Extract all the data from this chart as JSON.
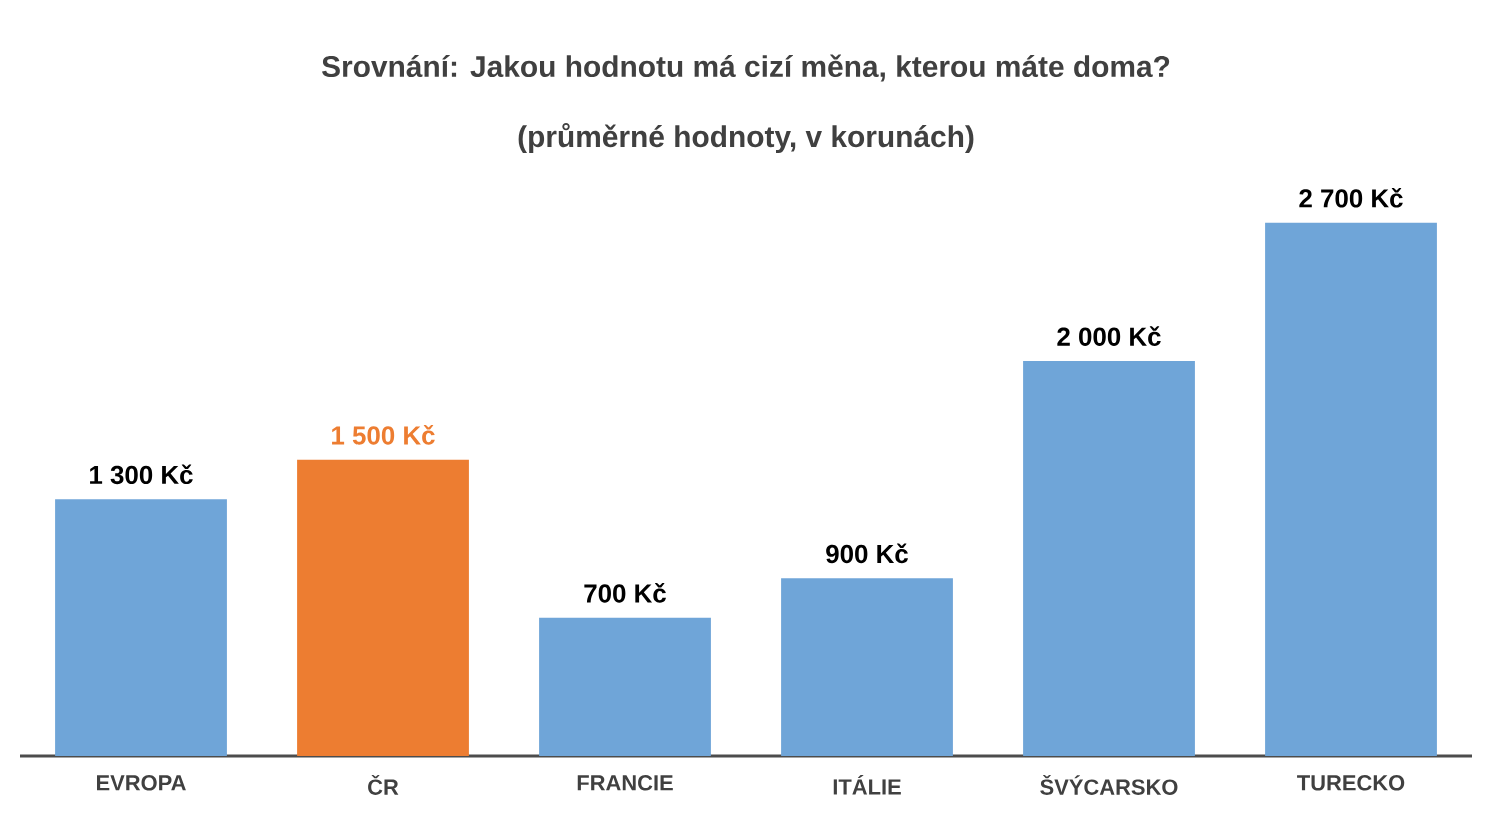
{
  "chart_data": {
    "type": "bar",
    "title": "Srovnání: Jakou hodnotu má cizí měna, kterou máte doma?",
    "subtitle": "(průměrné hodnoty, v korunách)",
    "categories": [
      "EVROPA",
      "ČR",
      "FRANCIE",
      "ITÁLIE",
      "ŠVÝCARSKO",
      "TURECKO"
    ],
    "values": [
      1300,
      1500,
      700,
      900,
      2000,
      2700
    ],
    "value_labels": [
      "1 300 Kč",
      "1 500 Kč",
      "700 Kč",
      "900 Kč",
      "2 000 Kč",
      "2 700 Kč"
    ],
    "color": "#6fa5d8",
    "colors": [
      "#6fa5d8",
      "#ed7d31",
      "#6fa5d8",
      "#6fa5d8",
      "#6fa5d8",
      "#6fa5d8"
    ],
    "tick_labels": "x"
  }
}
